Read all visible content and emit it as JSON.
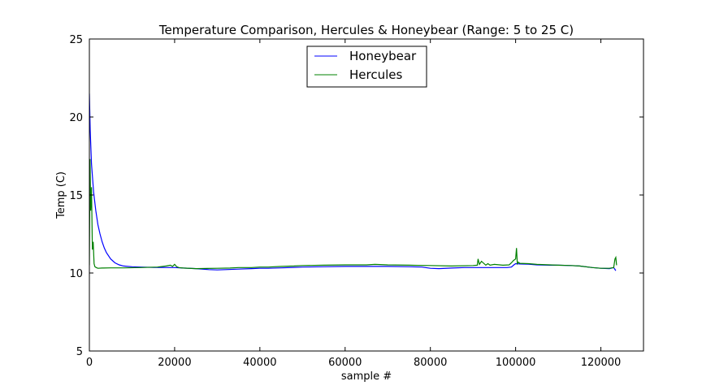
{
  "chart_data": {
    "type": "line",
    "title": "Temperature Comparison, Hercules & Honeybear (Range: 5 to 25 C)",
    "xlabel": "sample #",
    "ylabel": "Temp (C)",
    "xlim": [
      0,
      130000
    ],
    "ylim": [
      5,
      25
    ],
    "xticks": [
      0,
      20000,
      40000,
      60000,
      80000,
      100000,
      120000
    ],
    "yticks": [
      5,
      10,
      15,
      20,
      25
    ],
    "grid": false,
    "legend_position": "top-center",
    "series": [
      {
        "name": "Honeybear",
        "color": "#0000ff",
        "x": [
          0,
          200,
          500,
          1000,
          1500,
          2000,
          2500,
          3000,
          3500,
          4000,
          5000,
          6000,
          7000,
          8000,
          10000,
          12000,
          15000,
          20000,
          22000,
          25000,
          28000,
          30000,
          32000,
          35000,
          38000,
          40000,
          42000,
          45000,
          48000,
          50000,
          55000,
          60000,
          65000,
          70000,
          75000,
          78000,
          80000,
          82000,
          85000,
          88000,
          90000,
          95000,
          98000,
          99000,
          99500,
          100000,
          101000,
          103000,
          105000,
          108000,
          110000,
          113000,
          115000,
          118000,
          120000,
          122000,
          123000,
          123500
        ],
        "y": [
          21.5,
          19.2,
          17.0,
          15.2,
          14.0,
          13.1,
          12.5,
          12.0,
          11.6,
          11.3,
          10.9,
          10.65,
          10.52,
          10.45,
          10.4,
          10.38,
          10.36,
          10.35,
          10.32,
          10.28,
          10.22,
          10.2,
          10.22,
          10.25,
          10.28,
          10.3,
          10.3,
          10.33,
          10.36,
          10.38,
          10.4,
          10.42,
          10.42,
          10.42,
          10.4,
          10.38,
          10.3,
          10.28,
          10.32,
          10.35,
          10.35,
          10.35,
          10.35,
          10.38,
          10.5,
          10.6,
          10.58,
          10.56,
          10.52,
          10.5,
          10.5,
          10.48,
          10.45,
          10.35,
          10.3,
          10.28,
          10.35,
          10.15
        ]
      },
      {
        "name": "Hercules",
        "color": "#008000",
        "x": [
          0,
          150,
          300,
          500,
          700,
          900,
          1100,
          1300,
          1600,
          2000,
          3000,
          5000,
          8000,
          12000,
          16000,
          18000,
          19000,
          19500,
          20000,
          20500,
          21000,
          22000,
          25000,
          30000,
          33000,
          35000,
          38000,
          40000,
          42000,
          45000,
          48000,
          50000,
          55000,
          60000,
          65000,
          67000,
          70000,
          75000,
          80000,
          85000,
          90000,
          91000,
          91200,
          91500,
          92000,
          93000,
          93500,
          94000,
          95000,
          97000,
          98500,
          99000,
          99500,
          100000,
          100200,
          100400,
          100600,
          101000,
          103000,
          105000,
          108000,
          110000,
          113000,
          115000,
          118000,
          120000,
          122000,
          123000,
          123300,
          123500,
          123700
        ],
        "y": [
          10.5,
          17.3,
          14.0,
          15.5,
          11.5,
          12.0,
          10.6,
          10.4,
          10.35,
          10.3,
          10.32,
          10.33,
          10.33,
          10.35,
          10.38,
          10.45,
          10.5,
          10.42,
          10.55,
          10.4,
          10.35,
          10.32,
          10.28,
          10.3,
          10.32,
          10.35,
          10.35,
          10.38,
          10.38,
          10.42,
          10.45,
          10.48,
          10.5,
          10.52,
          10.52,
          10.55,
          10.52,
          10.5,
          10.48,
          10.45,
          10.48,
          10.5,
          10.9,
          10.55,
          10.75,
          10.5,
          10.6,
          10.5,
          10.55,
          10.5,
          10.52,
          10.65,
          10.8,
          10.9,
          11.6,
          10.6,
          10.7,
          10.62,
          10.6,
          10.55,
          10.52,
          10.5,
          10.48,
          10.45,
          10.35,
          10.3,
          10.3,
          10.35,
          10.9,
          11.0,
          10.5
        ]
      }
    ]
  }
}
